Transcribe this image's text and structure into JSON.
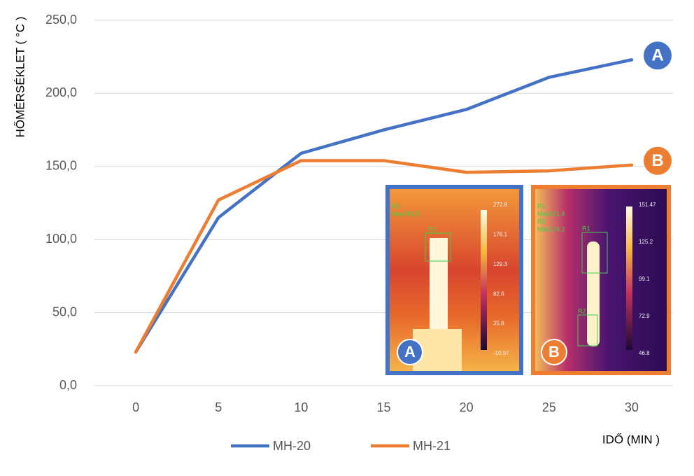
{
  "chart_data": {
    "type": "line",
    "y_axis_label": "HŐMÉRSÉKLET ( °C )",
    "x_axis_label": "IDŐ (MIN )",
    "categories": [
      "0",
      "5",
      "10",
      "15",
      "20",
      "25",
      "30"
    ],
    "series": [
      {
        "name": "MH-20",
        "color": "#4472c4",
        "values": [
          23,
          115,
          159,
          175,
          189,
          211,
          223
        ]
      },
      {
        "name": "MH-21",
        "color": "#ed7d31",
        "values": [
          23,
          127,
          154,
          154,
          146,
          147,
          151
        ]
      }
    ],
    "ylim": [
      0,
      250
    ],
    "yticks": [
      {
        "value": 0,
        "label": "0,0"
      },
      {
        "value": 50,
        "label": "50,0"
      },
      {
        "value": 100,
        "label": "100,0"
      },
      {
        "value": 150,
        "label": "150,0"
      },
      {
        "value": 200,
        "label": "200,0"
      },
      {
        "value": 250,
        "label": "250,0"
      }
    ],
    "grid": true,
    "annotations": [
      "A",
      "B"
    ],
    "insets": [
      {
        "label": "A",
        "regions": [
          "R1",
          "Max242.8"
        ],
        "box_labels": [
          "R1"
        ],
        "scale": [
          "272.8",
          "176.1",
          "129.3",
          "82.6",
          "35.8",
          "-10.97"
        ]
      },
      {
        "label": "B",
        "regions": [
          "R1",
          "Max151.4",
          "R2",
          "Max124.2"
        ],
        "box_labels": [
          "R1",
          "R2"
        ],
        "scale": [
          "151.47",
          "125.2",
          "99.1",
          "72.9",
          "46.8"
        ]
      }
    ]
  }
}
